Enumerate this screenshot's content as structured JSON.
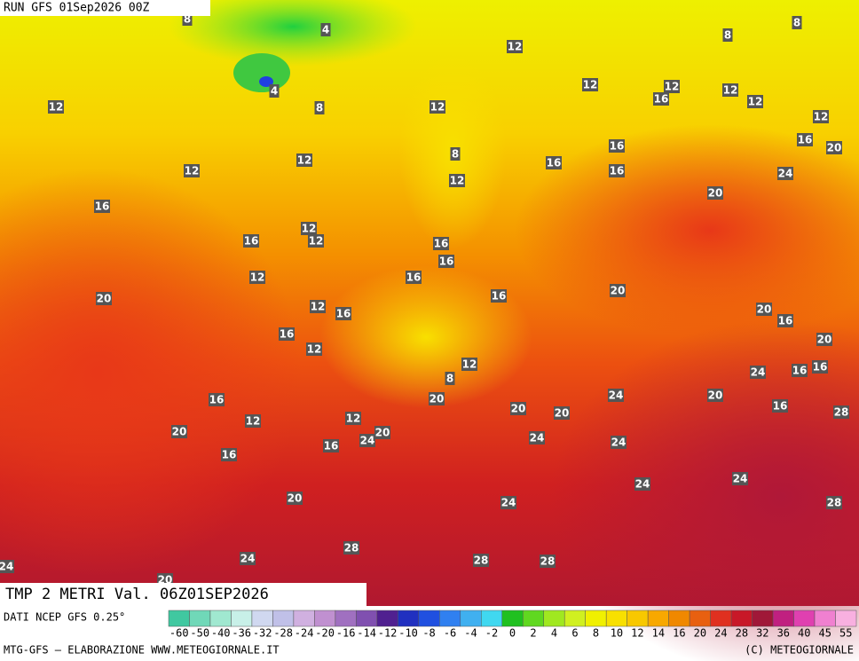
{
  "header": {
    "run": "RUN GFS 01Sep2026 00Z"
  },
  "map": {
    "title": "TMP 2 METRI Val. 06Z01SEP2026",
    "labels": [
      8,
      4,
      12,
      8,
      8,
      12,
      8,
      4,
      12,
      12,
      12,
      16,
      12,
      12,
      12,
      16,
      20,
      16,
      16,
      16,
      24,
      12,
      12,
      8,
      12,
      20,
      16,
      16,
      12,
      12,
      16,
      16,
      12,
      16,
      16,
      20,
      20,
      12,
      16,
      20,
      16,
      16,
      12,
      20,
      12,
      24,
      16,
      16,
      8,
      16,
      20,
      24,
      20,
      12,
      12,
      20,
      20,
      16,
      28,
      20,
      20,
      24,
      16,
      24,
      24,
      16,
      24,
      24,
      20,
      24,
      28,
      24,
      24,
      28,
      28,
      28,
      20
    ]
  },
  "legend": {
    "source": "DATI NCEP GFS 0.25°",
    "scale": [
      -60,
      -50,
      -40,
      -36,
      -32,
      -28,
      -24,
      -20,
      -16,
      -14,
      -12,
      -10,
      -8,
      -6,
      -4,
      -2,
      0,
      2,
      4,
      6,
      8,
      10,
      12,
      14,
      16,
      20,
      24,
      28,
      32,
      36,
      40,
      45,
      55
    ]
  },
  "footer": {
    "left": "MTG-GFS — ELABORAZIONE WWW.METEOGIORNALE.IT",
    "right": "(C) METEOGIORNALE"
  }
}
